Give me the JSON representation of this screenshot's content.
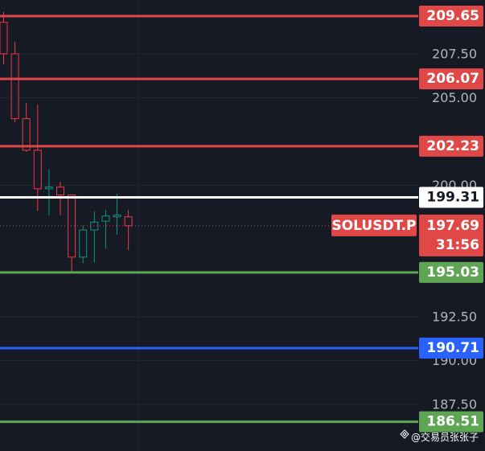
{
  "chart_data": {
    "type": "candlestick",
    "symbol": "SOLUSDT.P",
    "open": [
      209.3,
      207.5,
      203.8,
      202.0,
      199.8,
      199.9,
      199.45,
      195.9,
      197.45,
      197.95,
      198.2,
      198.2
    ],
    "high": [
      209.9,
      208.2,
      204.7,
      204.6,
      200.9,
      200.2,
      199.45,
      197.7,
      198.5,
      198.6,
      199.5,
      198.6
    ],
    "low": [
      206.9,
      203.6,
      201.9,
      198.55,
      198.3,
      198.3,
      195.0,
      195.56,
      195.6,
      196.4,
      197.2,
      196.3
    ],
    "close": [
      207.5,
      203.8,
      202.0,
      199.8,
      199.9,
      199.45,
      195.9,
      197.45,
      197.9,
      198.25,
      198.3,
      197.69
    ],
    "up_color": "#089981",
    "down_color": "#f23645",
    "ylim": [
      184.84,
      210.57
    ],
    "yticks": [
      {
        "value": 187.5,
        "label": "187.50"
      },
      {
        "value": 190,
        "label": "190.00"
      },
      {
        "value": 192.5,
        "label": "192.50"
      },
      {
        "value": 200,
        "label": "200.00"
      },
      {
        "value": 205,
        "label": "205.00"
      },
      {
        "value": 207.5,
        "label": "207.50"
      }
    ],
    "grid": true,
    "levels": [
      {
        "value": 209.65,
        "color": "#e04848"
      },
      {
        "value": 206.07,
        "color": "#e04848"
      },
      {
        "value": 202.23,
        "color": "#e04848"
      },
      {
        "value": 199.31,
        "color": "#ffffff"
      },
      {
        "value": 195.03,
        "color": "#5ea554"
      },
      {
        "value": 190.71,
        "color": "#2962ff"
      },
      {
        "value": 186.51,
        "color": "#5ea554"
      }
    ],
    "last_price": 197.69,
    "last_price_color": "#e04848",
    "countdown": "31:56",
    "watermark": "@交易员张张子"
  }
}
